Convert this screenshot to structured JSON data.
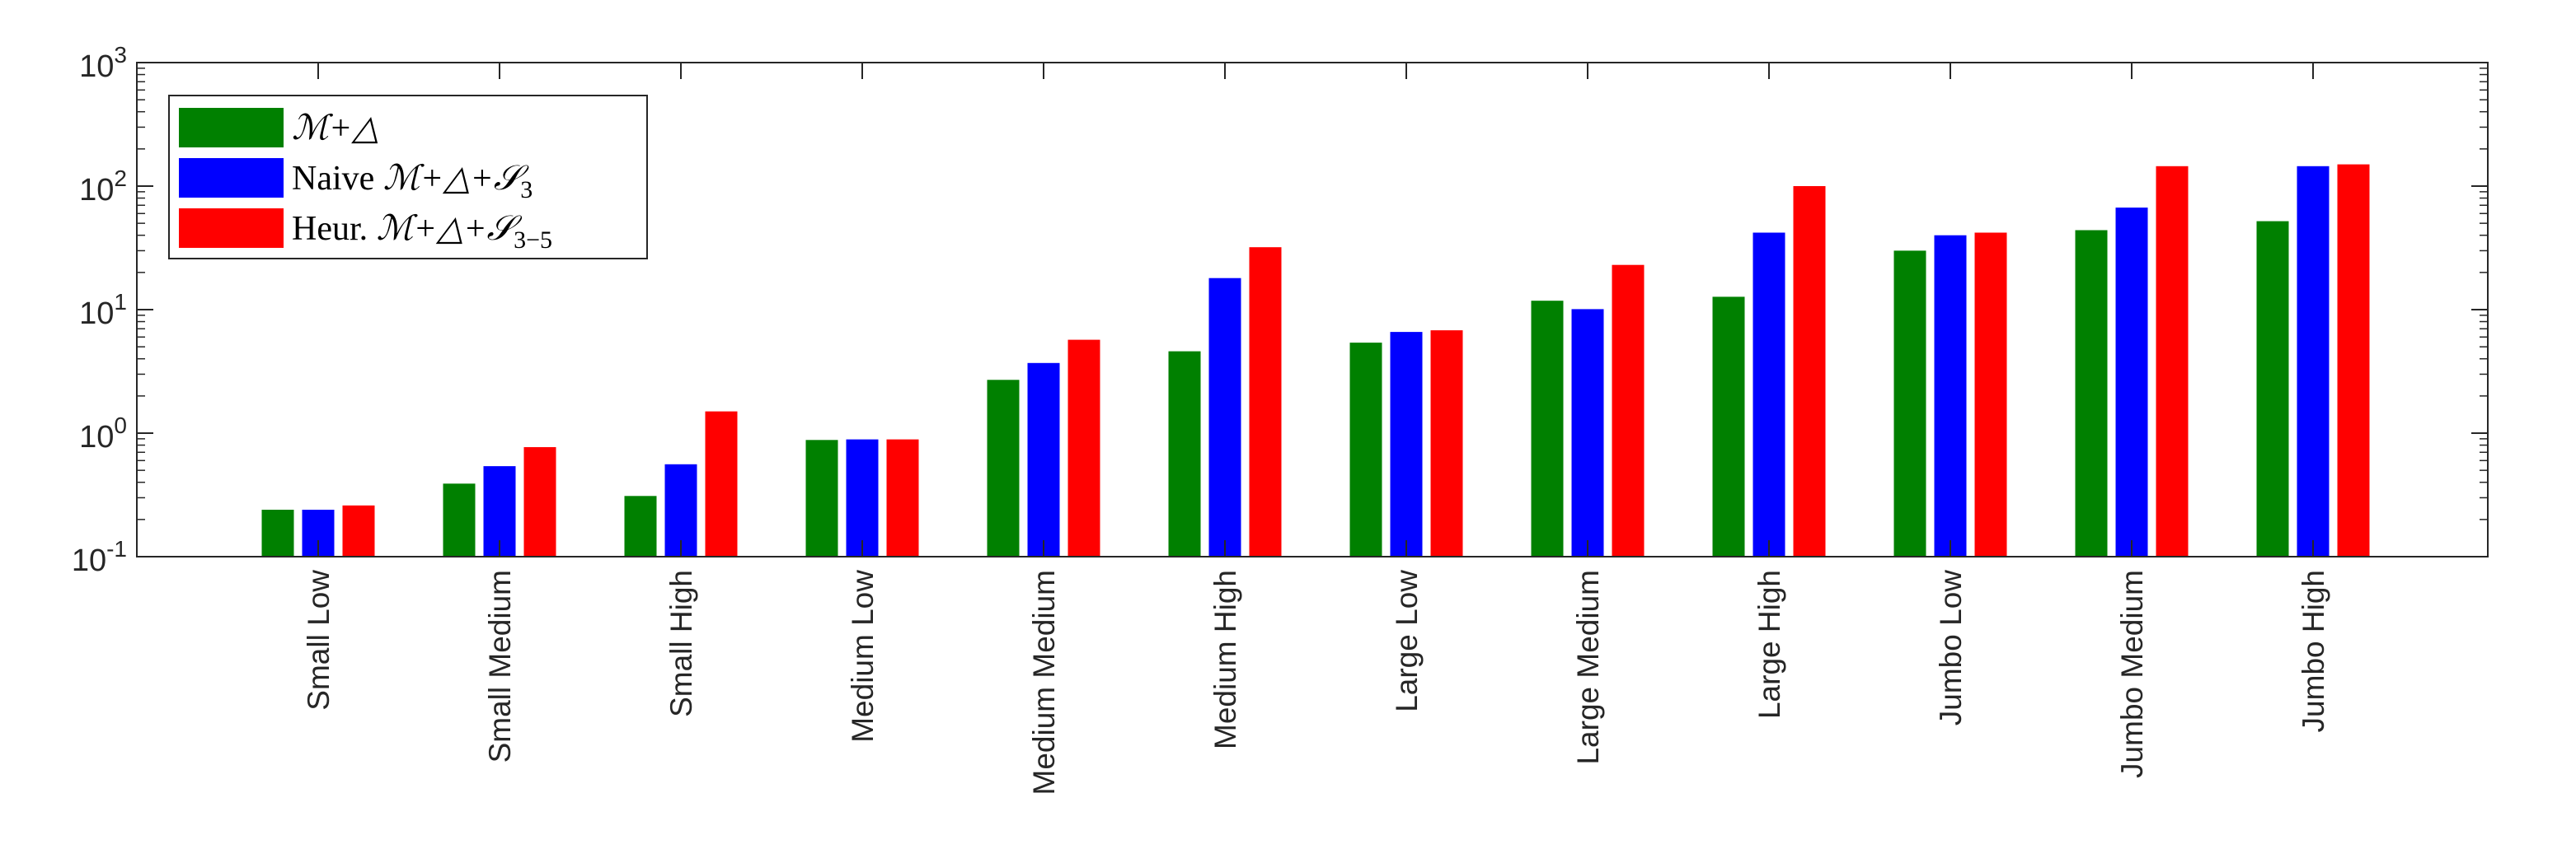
{
  "chart_data": {
    "type": "bar",
    "scale": "log",
    "ylim": [
      0.1,
      1000
    ],
    "yticks": [
      {
        "base": "10",
        "exp": "-1"
      },
      {
        "base": "10",
        "exp": "0"
      },
      {
        "base": "10",
        "exp": "1"
      },
      {
        "base": "10",
        "exp": "2"
      },
      {
        "base": "10",
        "exp": "3"
      }
    ],
    "ytick_values": [
      0.1,
      1,
      10,
      100,
      1000
    ],
    "categories": [
      "Small Low",
      "Small Medium",
      "Small High",
      "Medium Low",
      "Medium Medium",
      "Medium High",
      "Large Low",
      "Large Medium",
      "Large High",
      "Jumbo Low",
      "Jumbo Medium",
      "Jumbo High"
    ],
    "series": [
      {
        "key": "s1",
        "color": "#008000",
        "values": [
          0.24,
          0.39,
          0.31,
          0.88,
          2.7,
          4.6,
          5.4,
          11.8,
          12.7,
          30,
          44,
          52
        ]
      },
      {
        "key": "s2",
        "color": "#0000ff",
        "values": [
          0.24,
          0.54,
          0.56,
          0.89,
          3.7,
          18,
          6.6,
          10.1,
          42,
          40,
          67,
          145
        ]
      },
      {
        "key": "s3",
        "color": "#ff0000",
        "values": [
          0.26,
          0.77,
          1.5,
          0.89,
          5.7,
          32,
          6.8,
          23,
          100,
          42,
          145,
          150
        ]
      }
    ],
    "legend": {
      "placement": "top-left",
      "entries": [
        {
          "color": "#008000",
          "prefix": "",
          "math": "ℳ+△",
          "sub": ""
        },
        {
          "color": "#0000ff",
          "prefix": "Naive ",
          "math": "ℳ+△+𝒮",
          "sub": "3"
        },
        {
          "color": "#ff0000",
          "prefix": "Heur. ",
          "math": "ℳ+△+𝒮",
          "sub": "3−5"
        }
      ]
    },
    "grid": false,
    "title": "",
    "xlabel": "",
    "ylabel": ""
  }
}
